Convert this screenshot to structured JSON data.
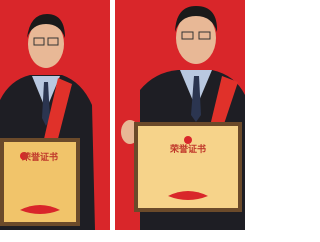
{
  "photos": [
    {
      "certificate_title": "荣誉证书"
    },
    {
      "certificate_title": "荣誉证书"
    }
  ]
}
